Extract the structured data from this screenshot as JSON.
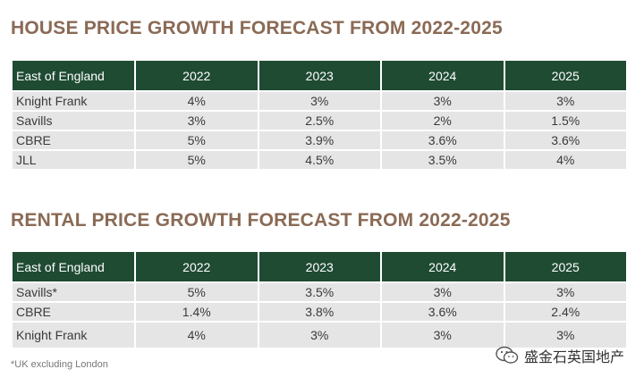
{
  "house": {
    "title": "HOUSE PRICE GROWTH FORECAST FROM 2022-2025",
    "headers": [
      "East of England",
      "2022",
      "2023",
      "2024",
      "2025"
    ],
    "rows": [
      [
        "Knight Frank",
        "4%",
        "3%",
        "3%",
        "3%"
      ],
      [
        "Savills",
        "3%",
        "2.5%",
        "2%",
        "1.5%"
      ],
      [
        "CBRE",
        "5%",
        "3.9%",
        "3.6%",
        "3.6%"
      ],
      [
        "JLL",
        "5%",
        "4.5%",
        "3.5%",
        "4%"
      ]
    ]
  },
  "rental": {
    "title": "RENTAL PRICE GROWTH FORECAST FROM 2022-2025",
    "headers": [
      "East of England",
      "2022",
      "2023",
      "2024",
      "2025"
    ],
    "rows": [
      [
        "Savills*",
        "5%",
        "3.5%",
        "3%",
        "3%"
      ],
      [
        "CBRE",
        "1.4%",
        "3.8%",
        "3.6%",
        "2.4%"
      ],
      [
        "Knight Frank",
        "4%",
        "3%",
        "3%",
        "3%"
      ]
    ]
  },
  "footnote": "*UK excluding London",
  "watermark": {
    "text": "盛金石英国地产",
    "icon": "wechat-icon"
  },
  "colors": {
    "title": "#8a6a55",
    "header_bg": "#1f4b33",
    "cell_bg": "#e4e5e4"
  }
}
